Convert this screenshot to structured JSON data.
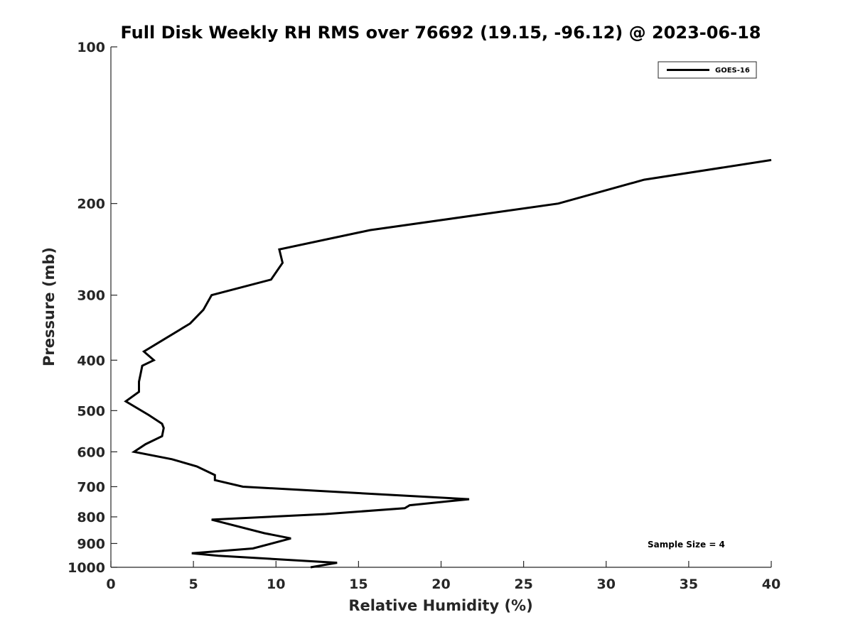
{
  "chart_data": {
    "type": "line",
    "title": "Full Disk Weekly RH RMS over 76692 (19.15, -96.12) @ 2023-06-18",
    "xlabel": "Relative Humidity (%)",
    "ylabel": "Pressure (mb)",
    "xlim": [
      0,
      40
    ],
    "ylim": [
      100,
      1000
    ],
    "y_scale": "log",
    "y_reversed": true,
    "grid": false,
    "xticks": [
      0,
      5,
      10,
      15,
      20,
      25,
      30,
      35,
      40
    ],
    "yticks": [
      100,
      200,
      300,
      400,
      500,
      600,
      700,
      800,
      900,
      1000
    ],
    "legend": {
      "position": "top-right",
      "entries": [
        "GOES-16"
      ]
    },
    "annotation": "Sample Size = 4",
    "series": [
      {
        "name": "GOES-16",
        "color": "#000000",
        "x": [
          12.1,
          13.7,
          6.5,
          4.9,
          8.6,
          10.9,
          9.3,
          6.1,
          13.0,
          17.8,
          18.1,
          21.7,
          8.0,
          6.3,
          6.3,
          5.2,
          3.7,
          1.4,
          2.1,
          3.1,
          3.2,
          3.1,
          2.3,
          0.9,
          1.7,
          1.7,
          1.8,
          1.9,
          2.6,
          2.0,
          3.2,
          4.8,
          5.6,
          6.1,
          9.7,
          10.4,
          10.2,
          15.7,
          27.1,
          32.3,
          40.0
        ],
        "y": [
          1000,
          980,
          950,
          940,
          920,
          880,
          860,
          810,
          790,
          770,
          760,
          740,
          700,
          680,
          665,
          640,
          620,
          600,
          580,
          560,
          540,
          530,
          510,
          480,
          460,
          440,
          425,
          410,
          400,
          385,
          365,
          340,
          320,
          300,
          280,
          260,
          245,
          225,
          200,
          180,
          165
        ]
      }
    ]
  }
}
